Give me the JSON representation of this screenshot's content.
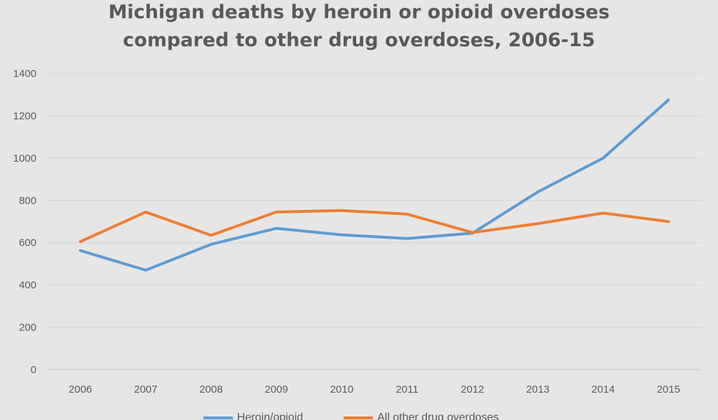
{
  "chart_data": {
    "type": "line",
    "title_lines": [
      "Michigan deaths by heroin or opioid overdoses",
      "compared to other drug overdoses, 2006-15"
    ],
    "xlabel": "",
    "ylabel": "",
    "categories": [
      "2006",
      "2007",
      "2008",
      "2009",
      "2010",
      "2011",
      "2012",
      "2013",
      "2014",
      "2015"
    ],
    "y_ticks": [
      "0",
      "200",
      "400",
      "600",
      "800",
      "1000",
      "1200",
      "1400"
    ],
    "ylim": [
      0,
      1400
    ],
    "grid": true,
    "legend_position": "bottom",
    "series": [
      {
        "name": "Heroin/opioid",
        "color": "#5b9bd5",
        "values": [
          563,
          470,
          592,
          668,
          637,
          620,
          645,
          840,
          1000,
          1275
        ]
      },
      {
        "name": "All other drug overdoses",
        "color": "#ed7d31",
        "values": [
          605,
          745,
          635,
          745,
          752,
          735,
          648,
          690,
          740,
          700
        ]
      }
    ]
  }
}
